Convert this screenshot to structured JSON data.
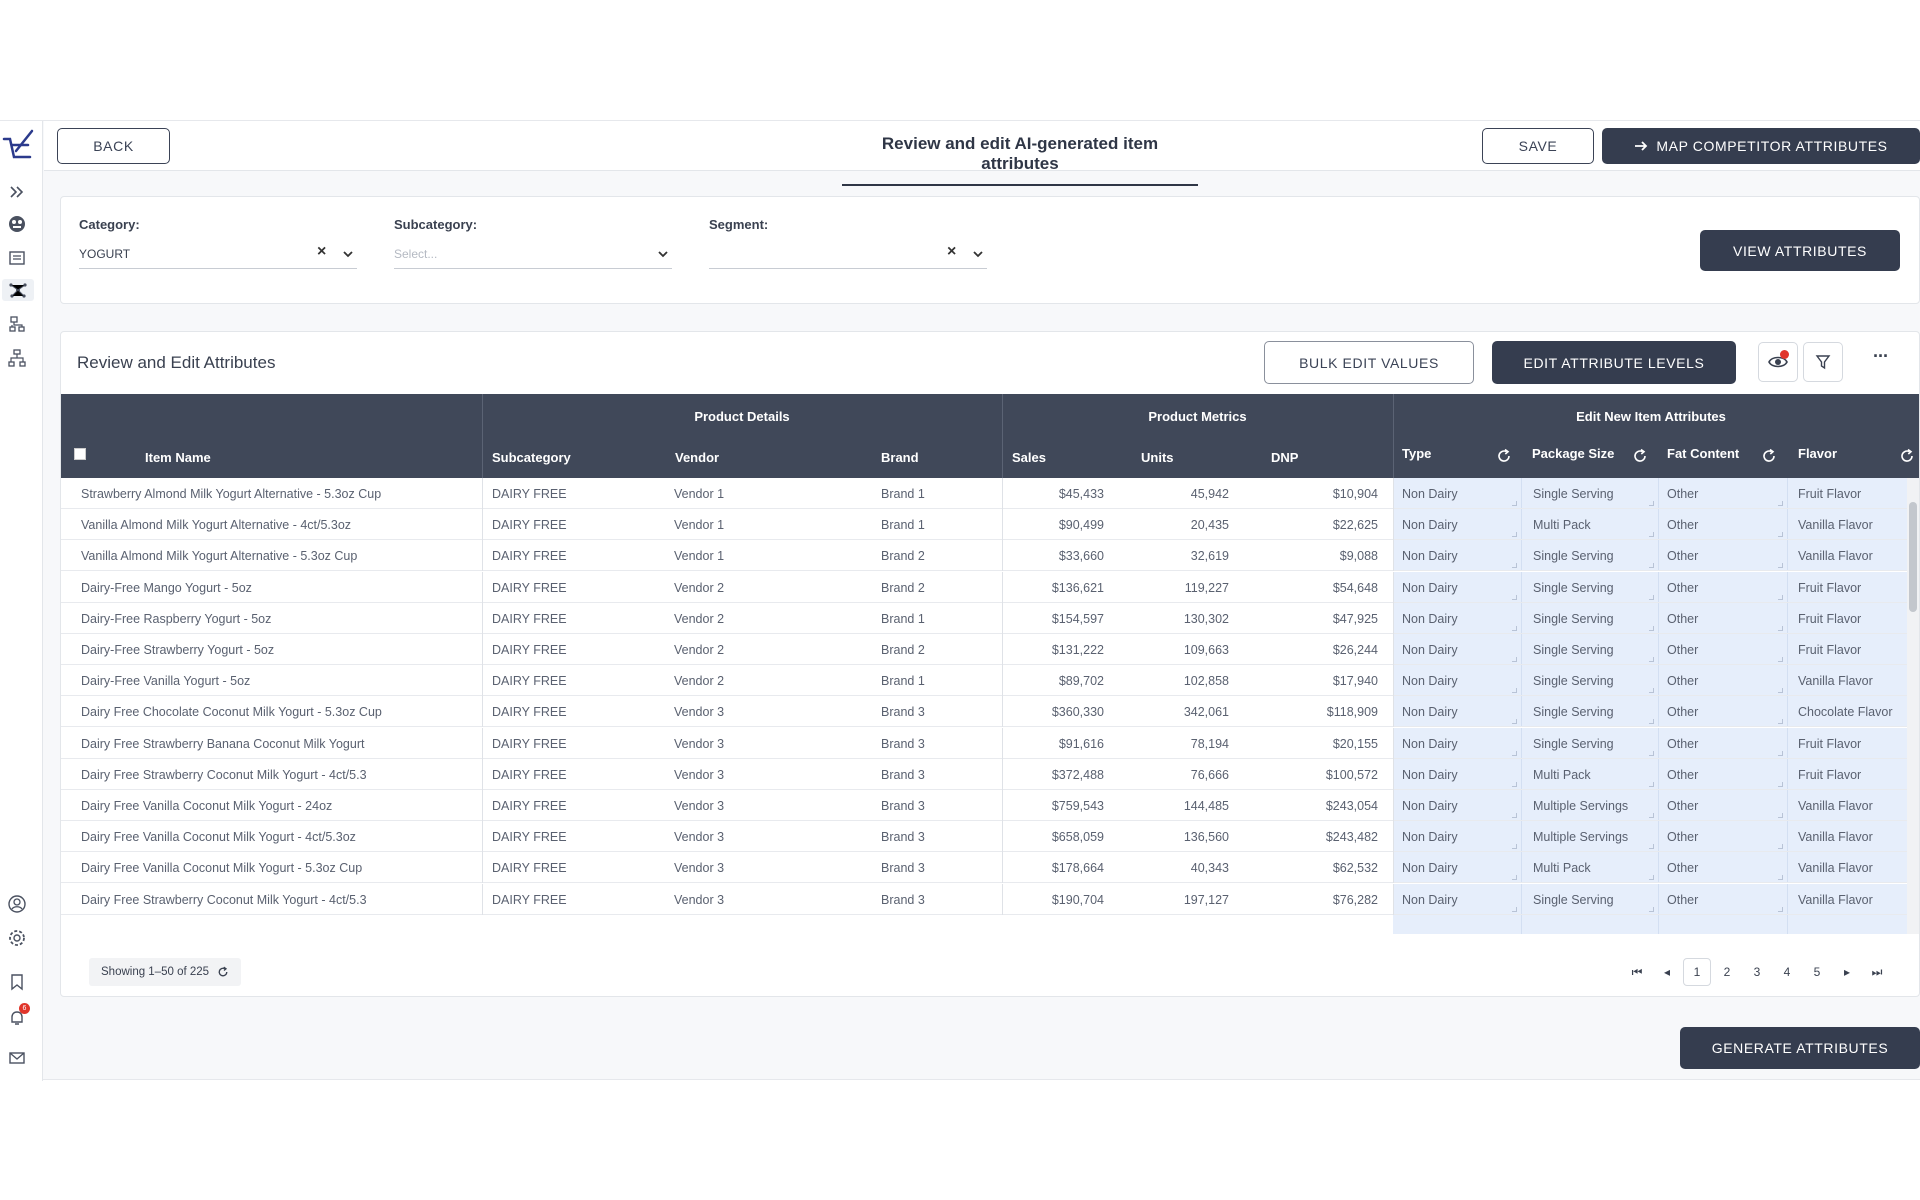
{
  "topbar": {
    "back_label": "BACK",
    "title": "Review and edit AI-generated item attributes",
    "save_label": "SAVE",
    "map_label": "MAP COMPETITOR ATTRIBUTES"
  },
  "filters": {
    "category_label": "Category:",
    "category_value": "YOGURT",
    "subcategory_label": "Subcategory:",
    "subcategory_placeholder": "Select...",
    "segment_label": "Segment:",
    "view_label": "VIEW ATTRIBUTES"
  },
  "card": {
    "title": "Review and Edit Attributes",
    "bulk_label": "BULK EDIT VALUES",
    "edit_levels_label": "EDIT ATTRIBUTE LEVELS",
    "more_label": "···"
  },
  "table": {
    "groups": {
      "details": "Product Details",
      "metrics": "Product Metrics",
      "attrs": "Edit New Item Attributes"
    },
    "columns": [
      "Item Name",
      "Subcategory",
      "Vendor",
      "Brand",
      "Sales",
      "Units",
      "DNP",
      "Type",
      "Package Size",
      "Fat Content",
      "Flavor"
    ],
    "rows": [
      {
        "name": "Strawberry Almond Milk Yogurt Alternative - 5.3oz Cup",
        "sub": "DAIRY FREE",
        "vendor": "Vendor 1",
        "brand": "Brand 1",
        "sales": "$45,433",
        "units": "45,942",
        "dnp": "$10,904",
        "type": "Non Dairy",
        "pkg": "Single Serving",
        "fat": "Other",
        "flavor": "Fruit Flavor"
      },
      {
        "name": "Vanilla Almond Milk Yogurt Alternative - 4ct/5.3oz",
        "sub": "DAIRY FREE",
        "vendor": "Vendor 1",
        "brand": "Brand 1",
        "sales": "$90,499",
        "units": "20,435",
        "dnp": "$22,625",
        "type": "Non Dairy",
        "pkg": "Multi Pack",
        "fat": "Other",
        "flavor": "Vanilla Flavor"
      },
      {
        "name": "Vanilla Almond Milk Yogurt Alternative - 5.3oz Cup",
        "sub": "DAIRY FREE",
        "vendor": "Vendor 1",
        "brand": "Brand 2",
        "sales": "$33,660",
        "units": "32,619",
        "dnp": "$9,088",
        "type": "Non Dairy",
        "pkg": "Single Serving",
        "fat": "Other",
        "flavor": "Vanilla Flavor"
      },
      {
        "name": "Dairy-Free Mango Yogurt - 5oz",
        "sub": "DAIRY FREE",
        "vendor": "Vendor 2",
        "brand": "Brand 2",
        "sales": "$136,621",
        "units": "119,227",
        "dnp": "$54,648",
        "type": "Non Dairy",
        "pkg": "Single Serving",
        "fat": "Other",
        "flavor": "Fruit Flavor"
      },
      {
        "name": "Dairy-Free Raspberry Yogurt - 5oz",
        "sub": "DAIRY FREE",
        "vendor": "Vendor 2",
        "brand": "Brand 1",
        "sales": "$154,597",
        "units": "130,302",
        "dnp": "$47,925",
        "type": "Non Dairy",
        "pkg": "Single Serving",
        "fat": "Other",
        "flavor": "Fruit Flavor"
      },
      {
        "name": "Dairy-Free Strawberry Yogurt - 5oz",
        "sub": "DAIRY FREE",
        "vendor": "Vendor 2",
        "brand": "Brand 2",
        "sales": "$131,222",
        "units": "109,663",
        "dnp": "$26,244",
        "type": "Non Dairy",
        "pkg": "Single Serving",
        "fat": "Other",
        "flavor": "Fruit Flavor"
      },
      {
        "name": "Dairy-Free Vanilla Yogurt - 5oz",
        "sub": "DAIRY FREE",
        "vendor": "Vendor 2",
        "brand": "Brand 1",
        "sales": "$89,702",
        "units": "102,858",
        "dnp": "$17,940",
        "type": "Non Dairy",
        "pkg": "Single Serving",
        "fat": "Other",
        "flavor": "Vanilla Flavor"
      },
      {
        "name": "Dairy Free Chocolate Coconut Milk Yogurt - 5.3oz Cup",
        "sub": "DAIRY FREE",
        "vendor": "Vendor 3",
        "brand": "Brand 3",
        "sales": "$360,330",
        "units": "342,061",
        "dnp": "$118,909",
        "type": "Non Dairy",
        "pkg": "Single Serving",
        "fat": "Other",
        "flavor": "Chocolate Flavor"
      },
      {
        "name": "Dairy Free Strawberry Banana Coconut Milk Yogurt",
        "sub": "DAIRY FREE",
        "vendor": "Vendor 3",
        "brand": "Brand 3",
        "sales": "$91,616",
        "units": "78,194",
        "dnp": "$20,155",
        "type": "Non Dairy",
        "pkg": "Single Serving",
        "fat": "Other",
        "flavor": "Fruit Flavor"
      },
      {
        "name": "Dairy Free Strawberry Coconut Milk Yogurt - 4ct/5.3",
        "sub": "DAIRY FREE",
        "vendor": "Vendor 3",
        "brand": "Brand 3",
        "sales": "$372,488",
        "units": "76,666",
        "dnp": "$100,572",
        "type": "Non Dairy",
        "pkg": "Multi Pack",
        "fat": "Other",
        "flavor": "Fruit Flavor"
      },
      {
        "name": "Dairy Free Vanilla Coconut Milk Yogurt - 24oz",
        "sub": "DAIRY FREE",
        "vendor": "Vendor 3",
        "brand": "Brand 3",
        "sales": "$759,543",
        "units": "144,485",
        "dnp": "$243,054",
        "type": "Non Dairy",
        "pkg": "Multiple Servings",
        "fat": "Other",
        "flavor": "Vanilla Flavor"
      },
      {
        "name": "Dairy Free Vanilla Coconut Milk Yogurt - 4ct/5.3oz",
        "sub": "DAIRY FREE",
        "vendor": "Vendor 3",
        "brand": "Brand 3",
        "sales": "$658,059",
        "units": "136,560",
        "dnp": "$243,482",
        "type": "Non Dairy",
        "pkg": "Multiple Servings",
        "fat": "Other",
        "flavor": "Vanilla Flavor"
      },
      {
        "name": "Dairy Free Vanilla Coconut Milk Yogurt - 5.3oz Cup",
        "sub": "DAIRY FREE",
        "vendor": "Vendor 3",
        "brand": "Brand 3",
        "sales": "$178,664",
        "units": "40,343",
        "dnp": "$62,532",
        "type": "Non Dairy",
        "pkg": "Multi Pack",
        "fat": "Other",
        "flavor": "Vanilla Flavor"
      },
      {
        "name": "Dairy Free Strawberry Coconut Milk Yogurt - 4ct/5.3",
        "sub": "DAIRY FREE",
        "vendor": "Vendor 3",
        "brand": "Brand 3",
        "sales": "$190,704",
        "units": "197,127",
        "dnp": "$76,282",
        "type": "Non Dairy",
        "pkg": "Single Serving",
        "fat": "Other",
        "flavor": "Vanilla Flavor"
      }
    ]
  },
  "footer": {
    "showing": "Showing 1–50 of 225",
    "pages": [
      "1",
      "2",
      "3",
      "4",
      "5"
    ],
    "current_page": "1",
    "generate_label": "GENERATE ATTRIBUTES"
  },
  "badges": {
    "notifications": "6"
  },
  "colors": {
    "dark": "#353d4f",
    "header": "#404859",
    "edit_cell": "#e6eefb",
    "brand": "#2b3a8c"
  }
}
